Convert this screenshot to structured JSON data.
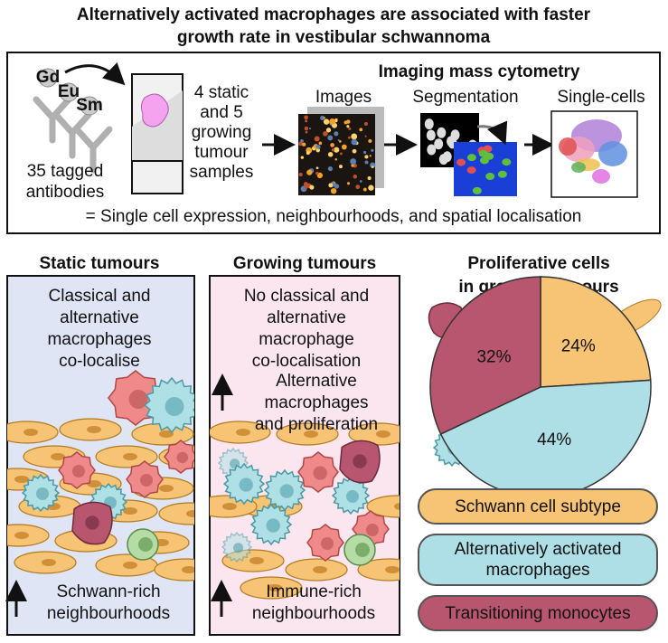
{
  "title": [
    "Alternatively activated macrophages are associated with faster",
    "growth rate in vestibular schwannoma"
  ],
  "workflow": {
    "heading": "Imaging mass cytometry",
    "isotopes": [
      "Gd",
      "Eu",
      "Sm"
    ],
    "antibodies": [
      "35 tagged",
      "antibodies"
    ],
    "samples": [
      "4 static",
      "and 5",
      "growing",
      "tumour",
      "samples"
    ],
    "steps": [
      "Images",
      "Segmentation",
      "Single-cells"
    ],
    "summary": "= Single cell expression, neighbourhoods, and spatial localisation"
  },
  "panels": [
    {
      "title": "Static tumours",
      "description": [
        "Classical and",
        "alternative",
        "macrophages",
        "co-localise"
      ],
      "finding": [
        "Schwann-rich",
        "neighbourhoods"
      ]
    },
    {
      "title": "Growing tumours",
      "description": [
        "No classical and",
        "alternative",
        "macrophage",
        "co-localisation"
      ],
      "finding_top": [
        "Alternative",
        "macrophages",
        "and proliferation"
      ],
      "finding": [
        "Immune-rich",
        "neighbourhoods"
      ]
    }
  ],
  "chart_data": {
    "type": "pie",
    "title": [
      "Proliferative cells",
      "in growing tumours"
    ],
    "categories": [
      "Schwann cell subtype",
      "Alternatively activated macrophages",
      "Transitioning monocytes"
    ],
    "values": [
      24,
      44,
      32
    ],
    "value_labels": [
      "24%",
      "44%",
      "32%"
    ],
    "colors": [
      "#f7c375",
      "#aedfe6",
      "#b8566f"
    ]
  }
}
